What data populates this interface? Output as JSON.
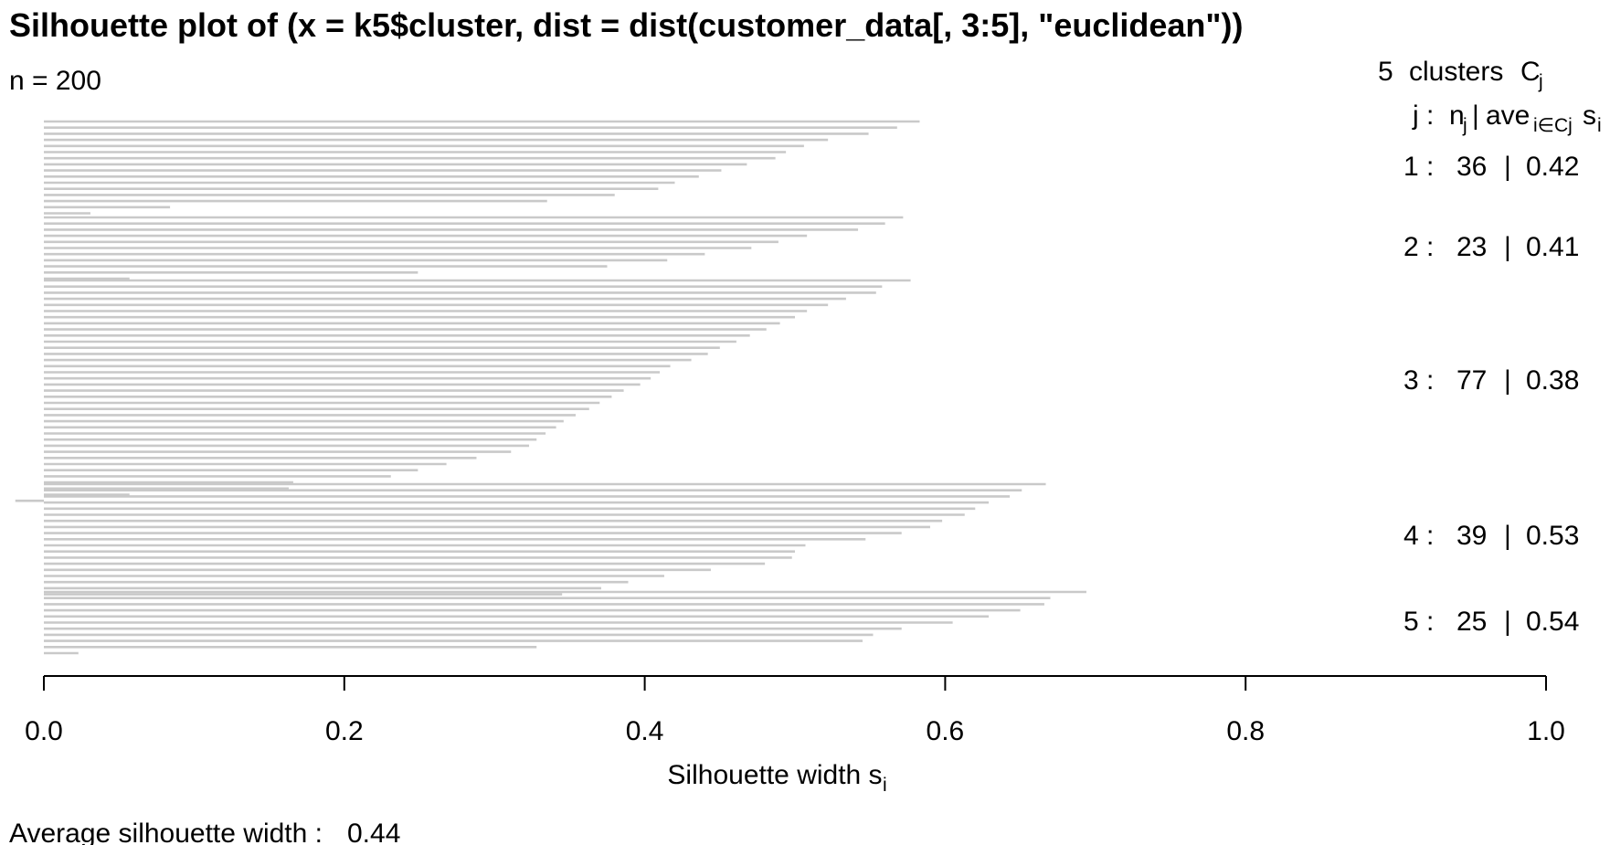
{
  "chart_data": {
    "type": "bar",
    "orientation": "horizontal",
    "title": "Silhouette plot of (x = k5$cluster, dist = dist(customer_data[, 3:5], \"euclidean\"))",
    "n_label": "n = 200",
    "xlabel_main": "Silhouette width s",
    "xlabel_sub": "i",
    "xlim": [
      0,
      1
    ],
    "x_ticks": [
      "0.0",
      "0.2",
      "0.4",
      "0.6",
      "0.8",
      "1.0"
    ],
    "legend": {
      "header_count": "5",
      "header_text": "clusters",
      "header_symbol": "C",
      "header_symbol_sub": "j",
      "col_j": "j :",
      "col_n": "n",
      "col_n_sub": "j",
      "col_sep": "|",
      "col_ave": "ave",
      "col_ave_sub": "i∈Cj",
      "col_s": "s",
      "col_s_sub": "i"
    },
    "clusters": [
      {
        "label": "1 :",
        "n": "36",
        "sep": "|",
        "avg": "0.42",
        "values": [
          0.583,
          0.568,
          0.549,
          0.522,
          0.506,
          0.494,
          0.487,
          0.468,
          0.451,
          0.436,
          0.42,
          0.409,
          0.38,
          0.335,
          0.084,
          0.031
        ]
      },
      {
        "label": "2 :",
        "n": "23",
        "sep": "|",
        "avg": "0.41",
        "values": [
          0.572,
          0.56,
          0.542,
          0.508,
          0.489,
          0.471,
          0.44,
          0.415,
          0.375,
          0.249,
          0.057
        ]
      },
      {
        "label": "3 :",
        "n": "77",
        "sep": "|",
        "avg": "0.38",
        "values": [
          0.577,
          0.558,
          0.554,
          0.534,
          0.522,
          0.508,
          0.5,
          0.49,
          0.481,
          0.47,
          0.461,
          0.45,
          0.442,
          0.431,
          0.417,
          0.41,
          0.404,
          0.397,
          0.386,
          0.378,
          0.37,
          0.363,
          0.354,
          0.346,
          0.341,
          0.334,
          0.328,
          0.323,
          0.311,
          0.288,
          0.268,
          0.249,
          0.231,
          0.166,
          0.163,
          0.057,
          -0.019
        ]
      },
      {
        "label": "4 :",
        "n": "39",
        "sep": "|",
        "avg": "0.53",
        "values": [
          0.667,
          0.651,
          0.643,
          0.629,
          0.62,
          0.613,
          0.598,
          0.59,
          0.571,
          0.547,
          0.507,
          0.5,
          0.498,
          0.48,
          0.444,
          0.413,
          0.389,
          0.371,
          0.345
        ]
      },
      {
        "label": "5 :",
        "n": "25",
        "sep": "|",
        "avg": "0.54",
        "values": [
          0.694,
          0.67,
          0.666,
          0.65,
          0.629,
          0.605,
          0.571,
          0.552,
          0.545,
          0.328,
          0.023
        ]
      }
    ],
    "footer_label": "Average silhouette width :",
    "footer_value": "0.44"
  }
}
